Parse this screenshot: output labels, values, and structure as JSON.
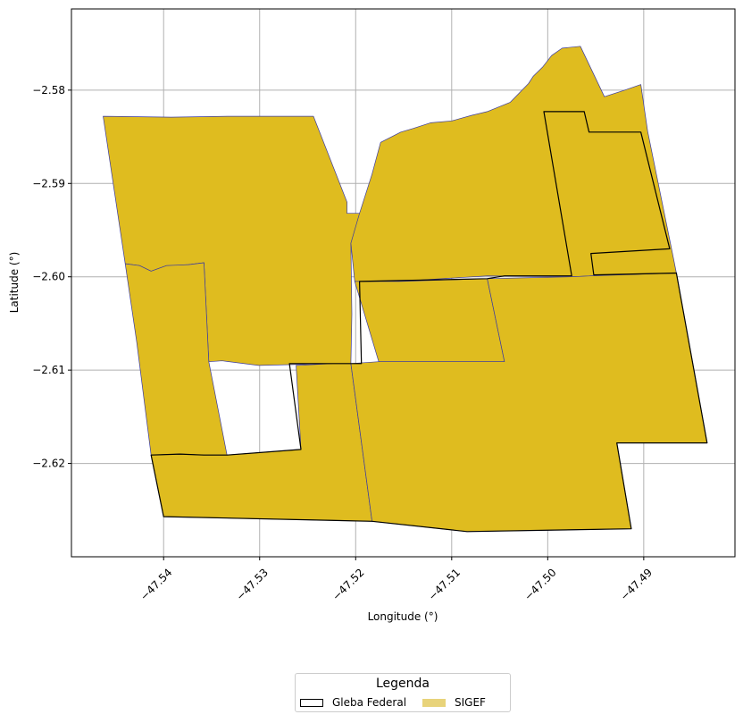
{
  "chart_data": {
    "type": "map",
    "xlabel": "Longitude (°)",
    "ylabel": "Latitude (°)",
    "xlim": [
      -47.5496,
      -47.4805
    ],
    "ylim": [
      -2.63,
      -2.5713
    ],
    "grid": true,
    "x_ticks": [
      {
        "value": -47.54,
        "label": "−47.54"
      },
      {
        "value": -47.53,
        "label": "−47.53"
      },
      {
        "value": -47.52,
        "label": "−47.52"
      },
      {
        "value": -47.51,
        "label": "−47.51"
      },
      {
        "value": -47.5,
        "label": "−47.50"
      },
      {
        "value": -47.49,
        "label": "−47.49"
      }
    ],
    "y_ticks": [
      {
        "value": -2.58,
        "label": "−2.58"
      },
      {
        "value": -2.59,
        "label": "−2.59"
      },
      {
        "value": -2.6,
        "label": "−2.60"
      },
      {
        "value": -2.61,
        "label": "−2.61"
      },
      {
        "value": -2.62,
        "label": "−2.62"
      }
    ],
    "colors": {
      "sigef_fill": "#dfbc1f",
      "sigef_edge": "#3a3aa0",
      "gleba_edge": "#000000",
      "grid": "#b0b0b0",
      "legend_sigef_swatch": "#e8d37a"
    },
    "sigef_parcels": [
      {
        "name": "northwest",
        "coords": [
          [
            -47.5463,
            -2.5828
          ],
          [
            -47.5392,
            -2.5829
          ],
          [
            -47.5331,
            -2.5828
          ],
          [
            -47.5244,
            -2.5828
          ],
          [
            -47.5209,
            -2.592
          ],
          [
            -47.5209,
            -2.5932
          ],
          [
            -47.5196,
            -2.5932
          ],
          [
            -47.5185,
            -2.5958
          ],
          [
            -47.5205,
            -2.5964
          ],
          [
            -47.5204,
            -2.604
          ],
          [
            -47.5205,
            -2.6093
          ],
          [
            -47.5223,
            -2.6093
          ],
          [
            -47.5301,
            -2.6095
          ],
          [
            -47.5339,
            -2.609
          ],
          [
            -47.5353,
            -2.6091
          ],
          [
            -47.5358,
            -2.5985
          ],
          [
            -47.5374,
            -2.5987
          ],
          [
            -47.5388,
            -2.5988
          ],
          [
            -47.5397,
            -2.5988
          ],
          [
            -47.5413,
            -2.5994
          ],
          [
            -47.5425,
            -2.5988
          ],
          [
            -47.544,
            -2.5986
          ]
        ]
      },
      {
        "name": "west-strip",
        "coords": [
          [
            -47.544,
            -2.5986
          ],
          [
            -47.5425,
            -2.5988
          ],
          [
            -47.5413,
            -2.5994
          ],
          [
            -47.5397,
            -2.5988
          ],
          [
            -47.5374,
            -2.5987
          ],
          [
            -47.5358,
            -2.5985
          ],
          [
            -47.5353,
            -2.6091
          ],
          [
            -47.5334,
            -2.6191
          ],
          [
            -47.5358,
            -2.6191
          ],
          [
            -47.5383,
            -2.619
          ],
          [
            -47.5413,
            -2.6191
          ],
          [
            -47.5428,
            -2.607
          ]
        ]
      },
      {
        "name": "southwest",
        "coords": [
          [
            -47.5413,
            -2.6191
          ],
          [
            -47.5383,
            -2.619
          ],
          [
            -47.5358,
            -2.6191
          ],
          [
            -47.5334,
            -2.6191
          ],
          [
            -47.5257,
            -2.6185
          ],
          [
            -47.5262,
            -2.6095
          ],
          [
            -47.5223,
            -2.6093
          ],
          [
            -47.5205,
            -2.6093
          ],
          [
            -47.5183,
            -2.6262
          ],
          [
            -47.54,
            -2.6257
          ]
        ]
      },
      {
        "name": "north-central",
        "coords": [
          [
            -47.5205,
            -2.5964
          ],
          [
            -47.5196,
            -2.5932
          ],
          [
            -47.5183,
            -2.589
          ],
          [
            -47.5174,
            -2.5856
          ],
          [
            -47.5153,
            -2.5845
          ],
          [
            -47.514,
            -2.5841
          ],
          [
            -47.5122,
            -2.5835
          ],
          [
            -47.51,
            -2.5833
          ],
          [
            -47.5079,
            -2.5827
          ],
          [
            -47.5063,
            -2.5823
          ],
          [
            -47.5039,
            -2.5813
          ],
          [
            -47.502,
            -2.5793
          ],
          [
            -47.5015,
            -2.5785
          ],
          [
            -47.5005,
            -2.5775
          ],
          [
            -47.4996,
            -2.5763
          ],
          [
            -47.4985,
            -2.5755
          ],
          [
            -47.4966,
            -2.5753
          ],
          [
            -47.4941,
            -2.5807
          ],
          [
            -47.492,
            -2.58
          ],
          [
            -47.4903,
            -2.5794
          ],
          [
            -47.4896,
            -2.5844
          ],
          [
            -47.4871,
            -2.597
          ],
          [
            -47.4866,
            -2.5996
          ],
          [
            -47.4955,
            -2.5999
          ],
          [
            -47.4975,
            -2.6
          ],
          [
            -47.5063,
            -2.5999
          ],
          [
            -47.5155,
            -2.6005
          ],
          [
            -47.5201,
            -2.6005
          ]
        ]
      },
      {
        "name": "central-inset",
        "coords": [
          [
            -47.5201,
            -2.6005
          ],
          [
            -47.5155,
            -2.6005
          ],
          [
            -47.5063,
            -2.6002
          ],
          [
            -47.5045,
            -2.6091
          ],
          [
            -47.5176,
            -2.6091
          ]
        ]
      },
      {
        "name": "south-central",
        "coords": [
          [
            -47.5205,
            -2.6093
          ],
          [
            -47.5176,
            -2.6091
          ],
          [
            -47.5045,
            -2.6091
          ],
          [
            -47.5063,
            -2.6002
          ],
          [
            -47.4975,
            -2.6
          ],
          [
            -47.4955,
            -2.5999
          ],
          [
            -47.4866,
            -2.5996
          ],
          [
            -47.4834,
            -2.6178
          ],
          [
            -47.4928,
            -2.6178
          ],
          [
            -47.4913,
            -2.627
          ],
          [
            -47.5084,
            -2.6273
          ],
          [
            -47.5183,
            -2.6262
          ]
        ]
      }
    ],
    "gleba_parcels": [
      {
        "name": "gleba-southwest",
        "coords": [
          [
            -47.5413,
            -2.6191
          ],
          [
            -47.5383,
            -2.619
          ],
          [
            -47.5358,
            -2.6191
          ],
          [
            -47.5334,
            -2.6191
          ],
          [
            -47.5257,
            -2.6185
          ],
          [
            -47.5269,
            -2.6093
          ],
          [
            -47.5194,
            -2.6093
          ],
          [
            -47.5196,
            -2.6005
          ],
          [
            -47.5063,
            -2.6002
          ],
          [
            -47.5045,
            -2.5999
          ],
          [
            -47.4975,
            -2.5999
          ],
          [
            -47.5004,
            -2.5823
          ],
          [
            -47.4962,
            -2.5823
          ],
          [
            -47.4957,
            -2.5845
          ],
          [
            -47.4903,
            -2.5845
          ],
          [
            -47.4873,
            -2.597
          ],
          [
            -47.4955,
            -2.5975
          ],
          [
            -47.4952,
            -2.5998
          ],
          [
            -47.4866,
            -2.5996
          ],
          [
            -47.4834,
            -2.6178
          ],
          [
            -47.4928,
            -2.6178
          ],
          [
            -47.4913,
            -2.627
          ],
          [
            -47.5084,
            -2.6273
          ],
          [
            -47.5183,
            -2.6262
          ],
          [
            -47.54,
            -2.6257
          ]
        ]
      }
    ],
    "legend": {
      "title": "Legenda",
      "placement": "below plot, center",
      "entries": [
        {
          "label": "Gleba Federal",
          "style": "outline"
        },
        {
          "label": "SIGEF",
          "style": "fill"
        }
      ]
    }
  }
}
